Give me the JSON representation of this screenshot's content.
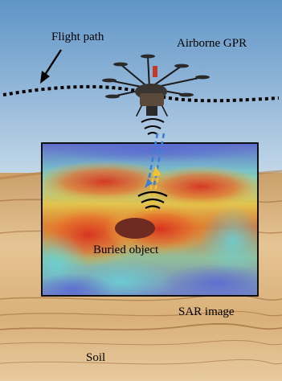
{
  "labels": {
    "flight_path": "Flight path",
    "airborne_gpr": "Airborne GPR",
    "buried_object": "Buried object",
    "sar_image": "SAR image",
    "soil": "Soil"
  },
  "colors": {
    "sky_top": "#5f95c6",
    "sky_bottom": "#bcd3e6",
    "soil_light": "#e3bf8c",
    "soil_dark": "#a06a35",
    "buried_object": "#6e2b22",
    "signal_blue": "#3a7fd8",
    "signal_yellow": "#f2c230",
    "heat_red": "#d8301e",
    "heat_yellow": "#f2d836",
    "heat_cyan": "#5fc6d8",
    "heat_blue": "#5a6bd2"
  },
  "icons": {
    "drone": "hexacopter-drone-icon",
    "waves": "radar-wave-icon"
  }
}
